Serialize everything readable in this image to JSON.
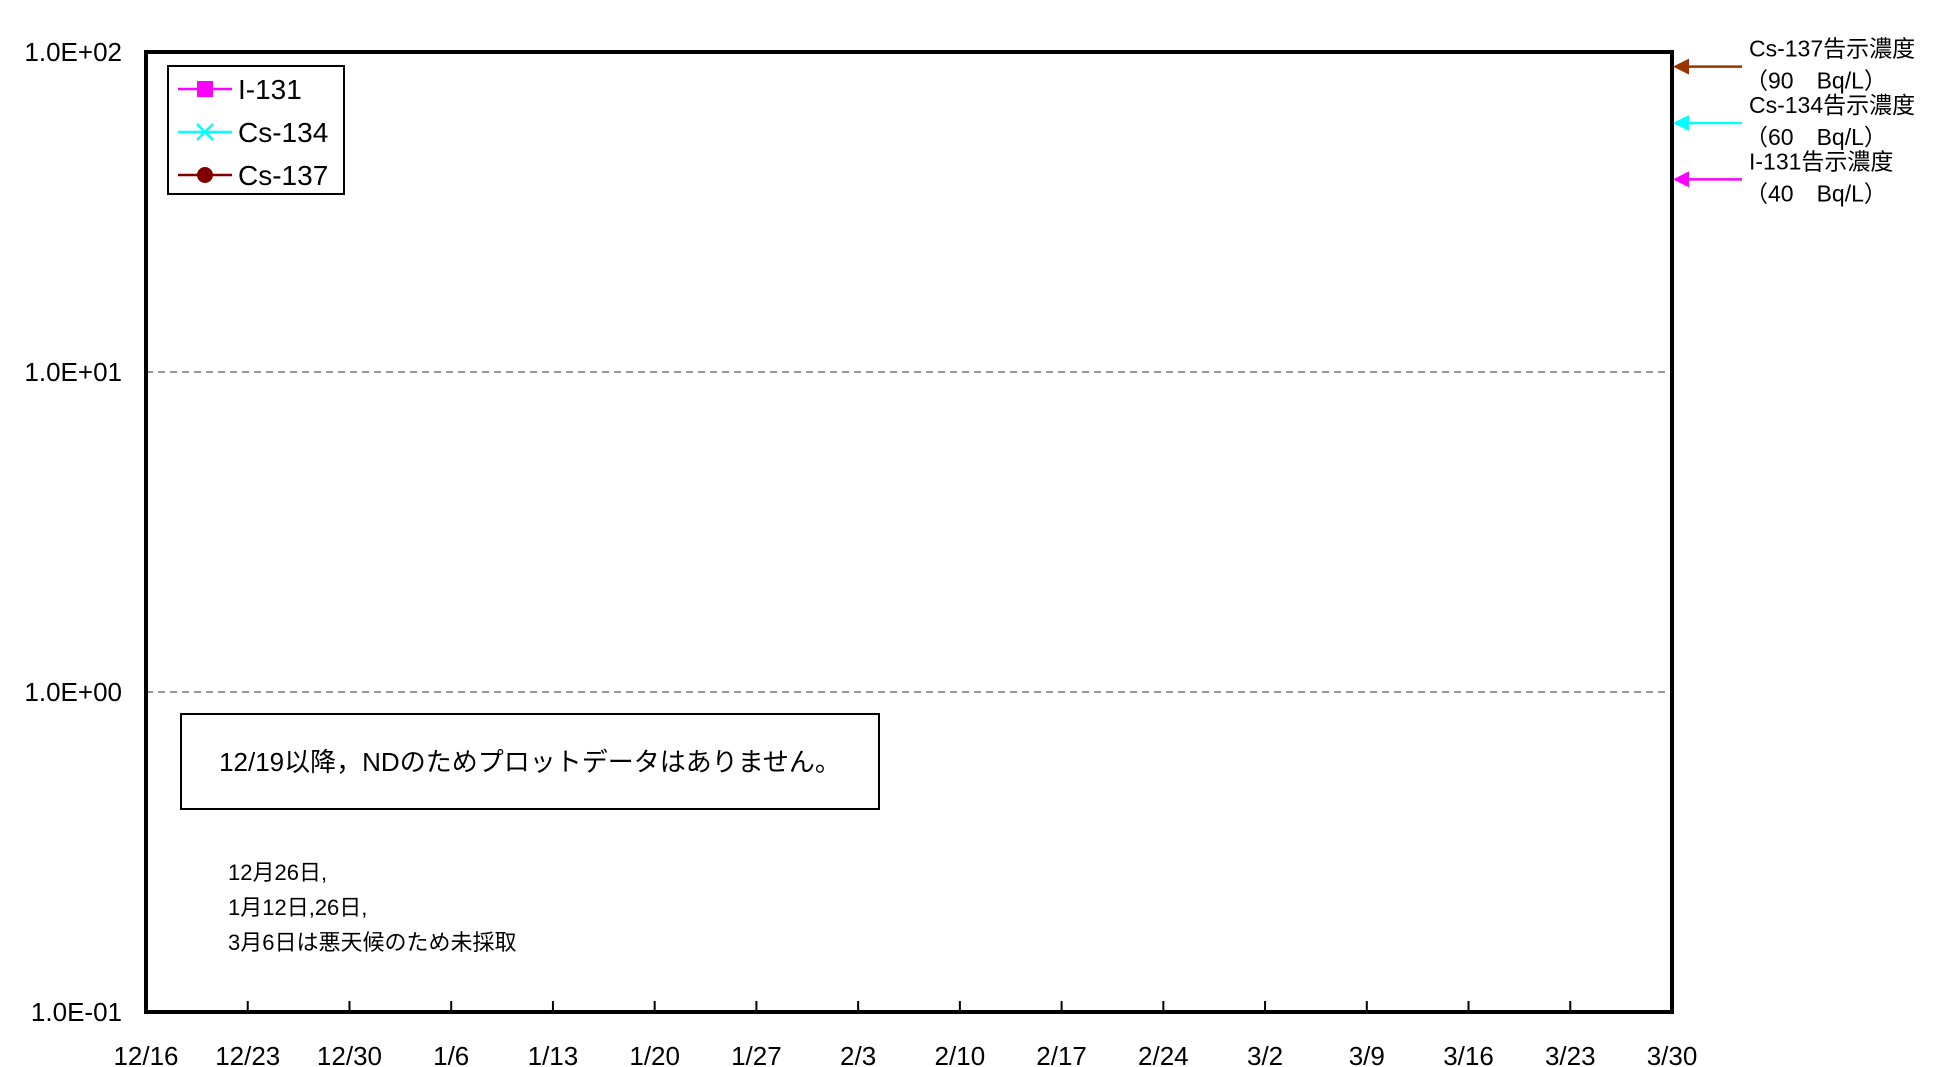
{
  "chart_data": {
    "type": "line",
    "yscale": "log",
    "ylim": [
      0.1,
      100
    ],
    "y_ticks": [
      "1.0E+02",
      "1.0E+01",
      "1.0E+00",
      "1.0E-01"
    ],
    "y_tick_values": [
      100,
      10,
      1,
      0.1
    ],
    "x_ticks": [
      "12/16",
      "12/23",
      "12/30",
      "1/6",
      "1/13",
      "1/20",
      "1/27",
      "2/3",
      "2/10",
      "2/17",
      "2/24",
      "3/2",
      "3/9",
      "3/16",
      "3/23",
      "3/30"
    ],
    "grid_y": true,
    "legend_position": "top-left",
    "series": [
      {
        "name": "I-131",
        "color": "#ff00ff",
        "marker": "square",
        "values": []
      },
      {
        "name": "Cs-134",
        "color": "#00ffff",
        "marker": "x",
        "values": []
      },
      {
        "name": "Cs-137",
        "color": "#800000",
        "marker": "circle",
        "values": []
      }
    ],
    "reference_lines": [
      {
        "line1": "Cs-137告示濃度",
        "line2": "（90　Bq/L）",
        "value": 90,
        "color": "#993300"
      },
      {
        "line1": "Cs-134告示濃度",
        "line2": "（60　Bq/L）",
        "value": 60,
        "color": "#00ffff"
      },
      {
        "line1": "I-131告示濃度",
        "line2": "（40　Bq/L）",
        "value": 40,
        "color": "#ff00ff"
      }
    ],
    "annotations": {
      "nd_note": "12/19以降，NDのためプロットデータはありません。",
      "sampling_note": [
        "12月26日,",
        "1月12日,26日,",
        "3月6日は悪天候のため未採取"
      ]
    }
  }
}
